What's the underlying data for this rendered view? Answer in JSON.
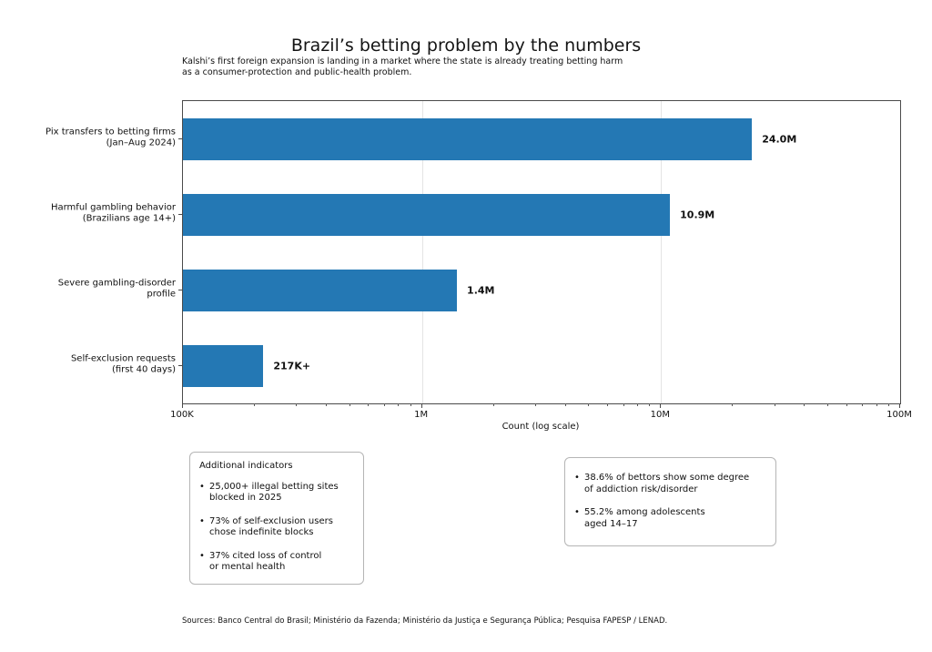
{
  "header": {
    "title": "Brazil’s betting problem by the numbers",
    "subtitle": "Kalshi’s first foreign expansion is landing in a market where the state is already treating betting harm\nas a consumer-protection and public-health problem."
  },
  "chart_data": {
    "type": "bar",
    "orientation": "horizontal",
    "x_scale": "log",
    "title": "Brazil’s betting problem by the numbers",
    "categories": [
      "Pix transfers to betting firms\n(Jan–Aug 2024)",
      "Harmful gambling behavior\n(Brazilians age 14+)",
      "Severe gambling-disorder\nprofile",
      "Self-exclusion requests\n(first 40 days)"
    ],
    "values": [
      24000000,
      10900000,
      1400000,
      217000
    ],
    "value_labels": [
      "24.0M",
      "10.9M",
      "1.4M",
      "217K+"
    ],
    "xlabel": "Count (log scale)",
    "xlim": [
      100000,
      100000000
    ],
    "x_ticks": [
      {
        "value": 100000,
        "label": "100K"
      },
      {
        "value": 1000000,
        "label": "1M"
      },
      {
        "value": 10000000,
        "label": "10M"
      },
      {
        "value": 100000000,
        "label": "100M"
      }
    ],
    "bar_color": "#2478b4",
    "grid": "vertical major gridlines",
    "legend": "none"
  },
  "info_boxes": [
    {
      "heading": "Additional indicators",
      "items": [
        "25,000+ illegal betting sites\nblocked in 2025",
        "73% of self-exclusion users\nchose indefinite blocks",
        "37% cited loss of control\nor mental health"
      ]
    },
    {
      "heading": "",
      "items": [
        "38.6% of bettors show some degree\nof addiction risk/disorder",
        "55.2% among adolescents\naged 14–17"
      ]
    }
  ],
  "footer": {
    "sources": "Sources: Banco Central do Brasil; Ministério da Fazenda; Ministério da Justiça e Segurança Pública; Pesquisa FAPESP / LENAD."
  },
  "ui": {
    "bullet_char": "•"
  }
}
